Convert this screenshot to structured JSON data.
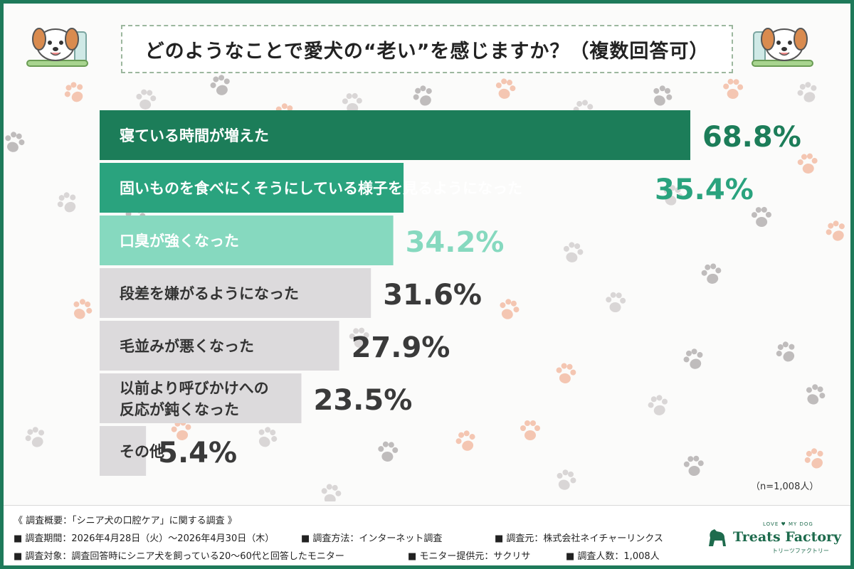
{
  "title": "どのようなことで愛犬の“老い”を感じますか？（複数回答可）",
  "chart_data": {
    "type": "bar",
    "orientation": "horizontal",
    "title": "どのようなことで愛犬の“老い”を感じますか？（複数回答可）",
    "categories": [
      [
        "寝ている時間が増えた"
      ],
      [
        "固いものを食べにくそうにしている様子を見るようになった"
      ],
      [
        "口臭が強くなった"
      ],
      [
        "段差を嫌がるようになった"
      ],
      [
        "毛並みが悪くなった"
      ],
      [
        "以前より呼びかけへの",
        "反応が鈍くなった"
      ],
      [
        "その他"
      ]
    ],
    "values": [
      68.8,
      35.4,
      34.2,
      31.6,
      27.9,
      23.5,
      5.4
    ],
    "value_labels": [
      "68.8%",
      "35.4%",
      "34.2%",
      "31.6%",
      "27.9%",
      "23.5%",
      "5.4%"
    ],
    "bar_colors": [
      "#1c7d59",
      "#2aa37e",
      "#86d9bf",
      "#dcdadc",
      "#dcdadc",
      "#dcdadc",
      "#dcdadc"
    ],
    "label_colors": [
      "#ffffff",
      "#ffffff",
      "#ffffff",
      "#333333",
      "#333333",
      "#333333",
      "#333333"
    ],
    "value_colors": [
      "#1c7d59",
      "#2aa37e",
      "#86d9bf",
      "#3a3a3a",
      "#3a3a3a",
      "#3a3a3a",
      "#3a3a3a"
    ],
    "xlim": [
      0,
      70
    ],
    "grid": false,
    "legend": "none"
  },
  "note": "（n=1,008人）",
  "footer": {
    "heading": "《 調査概要：「シニア犬の口腔ケア」に関する調査 》",
    "period": "■ 調査期間：2026年4月28日（火）～2026年4月30日（木）",
    "method": "■ 調査方法：インターネット調査",
    "organizer": "■ 調査元：株式会社ネイチャーリンクス",
    "target": "■ 調査対象：調査回答時にシニア犬を飼っている20～60代と回答したモニター",
    "provider": "■ モニター提供元：サクリサ",
    "count": "■ 調査人数：1,008人"
  },
  "logo": {
    "top": "LOVE ♥ MY DOG",
    "name": "Treats Factory",
    "sub": "トリーツファクトリー"
  },
  "colors": {
    "frame": "#1e7a5a",
    "title_border": "#9cb79e",
    "paw_colors": [
      "#f4c6b2",
      "#d9d6d6",
      "#bfbcbc"
    ]
  }
}
